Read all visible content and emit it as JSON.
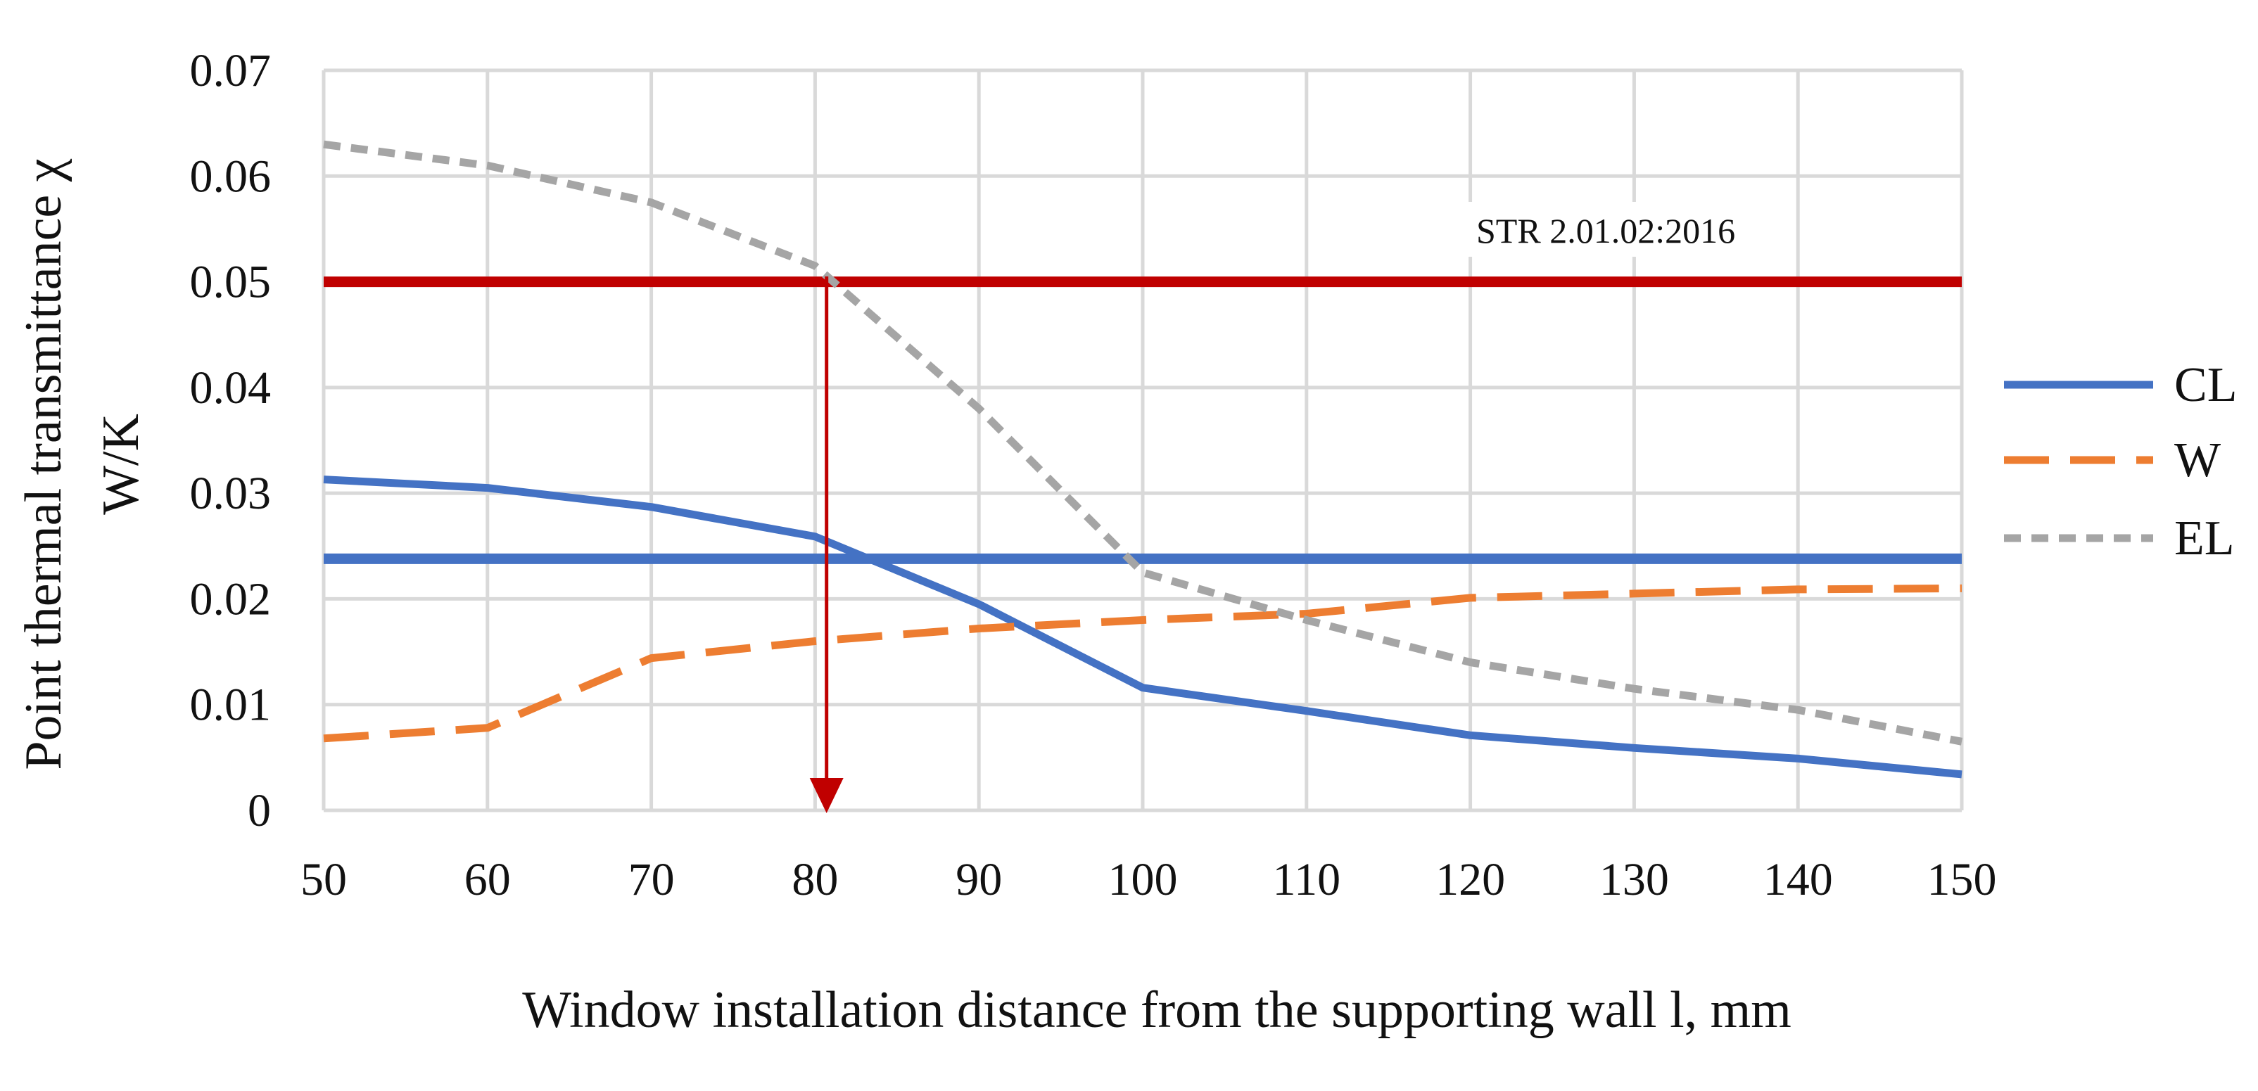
{
  "chart_data": {
    "type": "line",
    "title": "",
    "xlabel": "Window installation distance from the supporting wall l, mm",
    "ylabel_line1": "Point thermal transmittance χ",
    "ylabel_line2": "W/K",
    "xlim": [
      50,
      150
    ],
    "ylim": [
      0,
      0.07
    ],
    "x_ticks": [
      "50",
      "60",
      "70",
      "80",
      "90",
      "100",
      "110",
      "120",
      "130",
      "140",
      "150"
    ],
    "y_ticks": [
      "0",
      "0.01",
      "0.02",
      "0.03",
      "0.04",
      "0.05",
      "0.06",
      "0.07"
    ],
    "grid": true,
    "legend_position": "right",
    "series": [
      {
        "name": "CL",
        "style": "solid",
        "color": "#4472C4",
        "x": [
          50,
          60,
          70,
          80,
          90,
          100,
          110,
          120,
          130,
          140,
          150
        ],
        "values": [
          0.0313,
          0.0305,
          0.0287,
          0.0259,
          0.0195,
          0.0116,
          0.0094,
          0.0071,
          0.0059,
          0.0049,
          0.0034
        ]
      },
      {
        "name": "W",
        "style": "dashed",
        "color": "#ED7D31",
        "x": [
          50,
          60,
          70,
          80,
          90,
          100,
          110,
          120,
          130,
          140,
          150
        ],
        "values": [
          0.0068,
          0.0078,
          0.0144,
          0.016,
          0.0172,
          0.018,
          0.0186,
          0.0201,
          0.0205,
          0.0209,
          0.021
        ]
      },
      {
        "name": "EL",
        "style": "dotted",
        "color": "#A5A5A5",
        "x": [
          50,
          60,
          70,
          80,
          90,
          100,
          110,
          120,
          130,
          140,
          150
        ],
        "values": [
          0.063,
          0.061,
          0.0575,
          0.0515,
          0.038,
          0.0225,
          0.018,
          0.014,
          0.0115,
          0.0095,
          0.0065
        ]
      }
    ],
    "reference_lines": [
      {
        "label": "STR 2.01.02:2016",
        "y": 0.05,
        "color": "#C00000"
      },
      {
        "label": "",
        "y": 0.0238,
        "color": "#4472C4"
      }
    ],
    "annotation_arrow": {
      "x": 80.7,
      "y_from": 0.0505,
      "y_to": 0,
      "color": "#C00000"
    }
  }
}
